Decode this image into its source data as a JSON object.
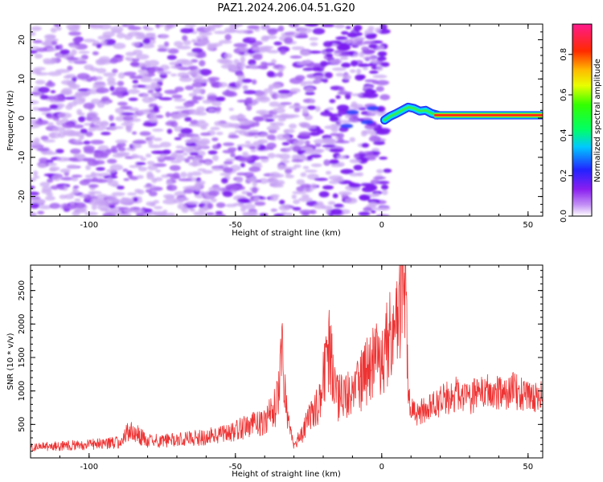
{
  "title": "PAZ1.2024.206.04.51.G20",
  "colors": {
    "snr_line": "#ee3333",
    "spectrogram_weak": "#c9a8f3",
    "spectrogram_mid": "#7b1cf0"
  },
  "chart_data": [
    {
      "type": "heatmap",
      "xlabel": "Height of straight line (km)",
      "ylabel": "Frequency (Hz)",
      "xlim": [
        -120,
        55
      ],
      "ylim": [
        -25,
        24
      ],
      "xticks": [
        -100,
        -50,
        0,
        50
      ],
      "yticks": [
        -20,
        -10,
        0,
        10,
        20
      ],
      "grid": false,
      "colorbar": {
        "label": "Normalized spectral amplitude",
        "ticks": [
          0.0,
          0.2,
          0.4,
          0.6,
          0.8
        ],
        "range": [
          0.0,
          0.95
        ],
        "colormap": "rainbow (purple-blue-cyan-green-yellow-orange-red-pink)"
      },
      "features": {
        "noise_region_x_km": [
          -120,
          0
        ],
        "noise_amplitude": [
          0.05,
          0.3
        ],
        "transition_x_km": [
          0,
          18
        ],
        "transition_freq_hz": [
          -1,
          3
        ],
        "tone_x_km": [
          18,
          55
        ],
        "tone_freq_hz": [
          0,
          1.5
        ],
        "tone_amplitude": 0.95
      }
    },
    {
      "type": "line",
      "xlabel": "Height of straight line (km)",
      "ylabel": "SNR (10 * v/v)",
      "xlim": [
        -120,
        55
      ],
      "ylim": [
        0,
        2880
      ],
      "xticks": [
        -100,
        -50,
        0,
        50
      ],
      "yticks": [
        500,
        1000,
        1500,
        2000,
        2500
      ],
      "grid": false,
      "series": [
        {
          "x": [
            -120,
            -110,
            -100,
            -90,
            -86,
            -80,
            -70,
            -60,
            -50,
            -40,
            -36,
            -34,
            -32,
            -30,
            -28,
            -24,
            -21,
            -18,
            -15,
            -10,
            -5,
            0,
            3,
            5,
            7,
            8,
            9,
            10,
            12,
            15,
            20,
            25,
            30,
            35,
            40,
            45,
            50,
            55
          ],
          "y": [
            160,
            180,
            200,
            230,
            420,
            250,
            270,
            310,
            400,
            560,
            780,
            1450,
            550,
            200,
            300,
            650,
            900,
            1600,
            900,
            950,
            1300,
            1550,
            1800,
            2150,
            2600,
            2850,
            1100,
            700,
            650,
            750,
            850,
            950,
            900,
            1000,
            950,
            1000,
            900,
            950
          ]
        }
      ]
    }
  ]
}
